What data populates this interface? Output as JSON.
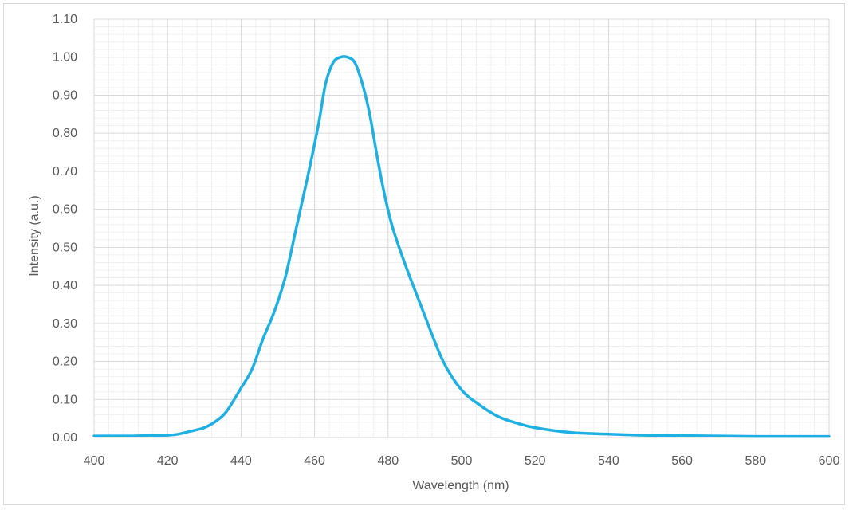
{
  "chart_data": {
    "type": "line",
    "title": "",
    "xlabel": "Wavelength (nm)",
    "ylabel": "Intensity (a.u.)",
    "xlim": [
      400,
      600
    ],
    "ylim": [
      0,
      1.1
    ],
    "x_ticks": [
      "400",
      "420",
      "440",
      "460",
      "480",
      "500",
      "520",
      "540",
      "560",
      "580",
      "600"
    ],
    "y_ticks": [
      "0.00",
      "0.10",
      "0.20",
      "0.30",
      "0.40",
      "0.50",
      "0.60",
      "0.70",
      "0.80",
      "0.90",
      "1.00",
      "1.10"
    ],
    "grid": true,
    "minor_grid": true,
    "legend": "none",
    "series": [
      {
        "color": "#1FB0E3",
        "x": [
          400,
          405,
          410,
          415,
          420,
          423,
          426,
          430,
          433,
          436,
          440,
          443,
          446,
          449,
          452,
          455,
          458,
          461,
          463,
          465,
          467,
          469,
          471,
          473,
          475,
          477,
          479,
          481,
          483,
          486,
          490,
          495,
          500,
          505,
          510,
          515,
          520,
          530,
          540,
          550,
          560,
          570,
          580,
          590,
          600
        ],
        "y": [
          0.004,
          0.004,
          0.004,
          0.005,
          0.006,
          0.009,
          0.016,
          0.026,
          0.042,
          0.068,
          0.13,
          0.18,
          0.26,
          0.33,
          0.42,
          0.55,
          0.68,
          0.82,
          0.93,
          0.985,
          1.0,
          1.0,
          0.985,
          0.93,
          0.85,
          0.74,
          0.64,
          0.56,
          0.5,
          0.42,
          0.32,
          0.2,
          0.125,
          0.085,
          0.055,
          0.038,
          0.026,
          0.013,
          0.009,
          0.006,
          0.005,
          0.004,
          0.003,
          0.003,
          0.003
        ]
      }
    ]
  }
}
